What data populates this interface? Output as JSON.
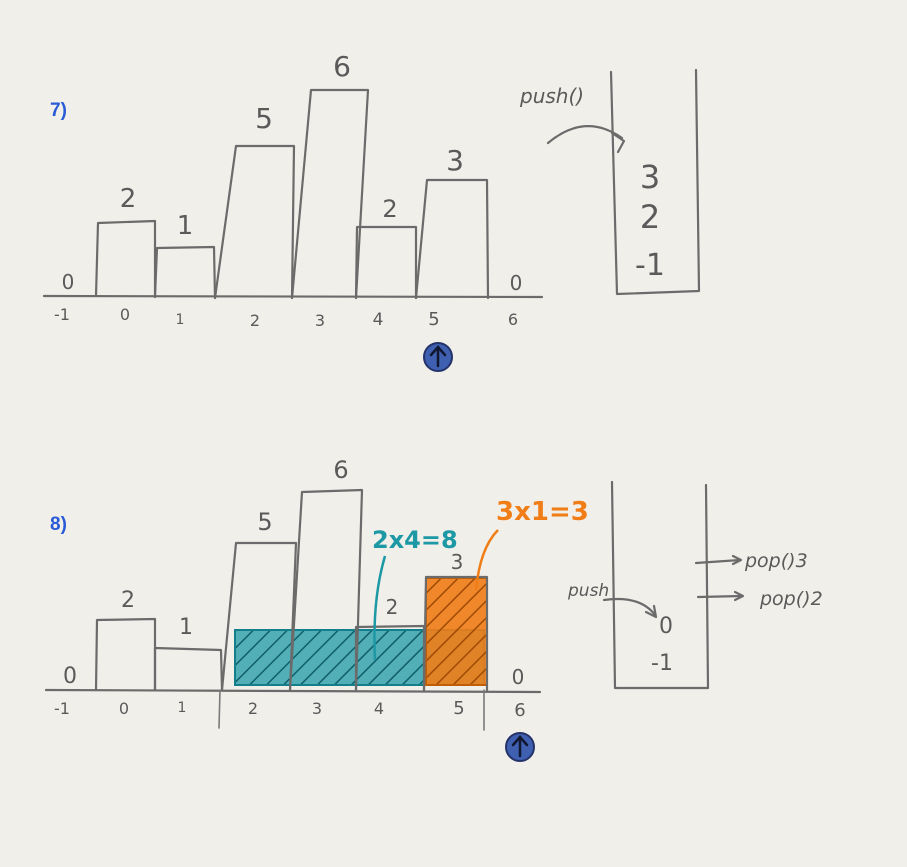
{
  "colors": {
    "paper": "#f1efea",
    "pencil": "#6b6b6b",
    "step_label": "#2a5bd7",
    "teal": "#1d98a5",
    "orange": "#f07d16",
    "pointer": "#3f5fb0"
  },
  "step7": {
    "label": "7)",
    "bar_heights": [
      "2",
      "1",
      "5",
      "6",
      "2",
      "3"
    ],
    "sentinel_left": "0",
    "sentinel_right": "0",
    "indices": [
      "-1",
      "0",
      "1",
      "2",
      "3",
      "4",
      "5",
      "6"
    ],
    "push_label": "push()",
    "stack": [
      "3",
      "2",
      "-1"
    ],
    "pointer_icon": "up-arrow-circle-icon"
  },
  "step8": {
    "label": "8)",
    "bar_heights": [
      "2",
      "1",
      "5",
      "6",
      "2",
      "3"
    ],
    "sentinel_left": "0",
    "sentinel_right": "0",
    "indices": [
      "-1",
      "0",
      "1",
      "2",
      "3",
      "4",
      "5",
      "6"
    ],
    "teal_area": "2x4=8",
    "orange_area": "3x1=3",
    "push_label": "push",
    "pop_labels": [
      "pop()3",
      "pop()2"
    ],
    "stack": [
      "0",
      "-1"
    ],
    "pointer_icon": "up-arrow-circle-icon"
  }
}
